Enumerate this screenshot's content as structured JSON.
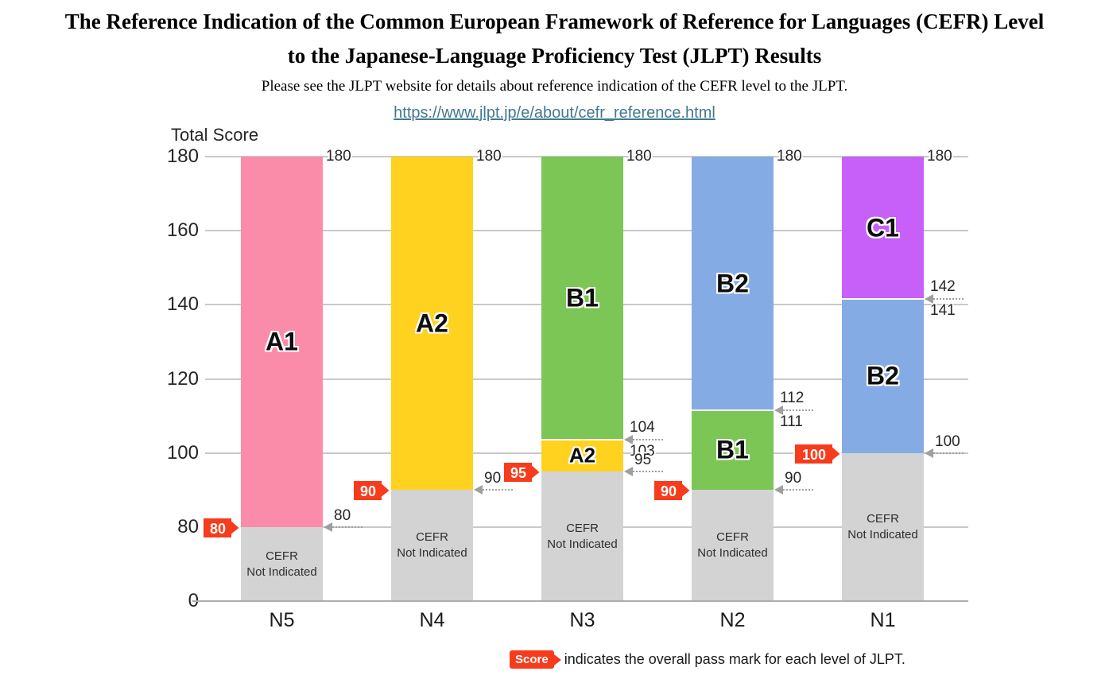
{
  "header": {
    "title_line1": "The Reference Indication of the Common European Framework of Reference for Languages (CEFR) Level",
    "title_line2": "to the Japanese-Language Proficiency Test (JLPT) Results",
    "subtitle": "Please see the JLPT website for details about reference indication of the CEFR level to the JLPT.",
    "link_text": "https://www.jlpt.jp/e/about/cefr_reference.html"
  },
  "legend": {
    "badge_label": "Score",
    "text": "indicates the overall pass mark for each level of JLPT."
  },
  "colors": {
    "A1": "#FB8CA9",
    "A2": "#FFD21F",
    "B1": "#7CC655",
    "B2": "#85ABE4",
    "C1": "#C760F8",
    "not_indicated": "#D3D3D3",
    "pass_badge_red": "#F73B1D",
    "link_teal": "#41798F",
    "gridline": "#C9C9C9",
    "axis_line": "#ADADAD"
  },
  "chart_data": {
    "type": "bar",
    "title": "Total Score",
    "ylabel": "Total Score",
    "ylim": [
      0,
      180
    ],
    "yticks": [
      180,
      160,
      140,
      120,
      100,
      80,
      0
    ],
    "axis_note": "y-axis is compressed below score 80",
    "categories": [
      "N5",
      "N4",
      "N3",
      "N2",
      "N1"
    ],
    "bars": [
      {
        "category": "N5",
        "pass_mark": 80,
        "segments": [
          {
            "level": null,
            "label": "CEFR Not Indicated",
            "label_lines": [
              "CEFR",
              "Not Indicated"
            ],
            "from": 0,
            "to": 80,
            "color": "not_indicated"
          },
          {
            "level": "A1",
            "label": "A1",
            "from": 80,
            "to": 180,
            "color": "A1"
          }
        ],
        "annotations": [
          {
            "style": "plain",
            "score": 180,
            "text": "180"
          },
          {
            "style": "arrow",
            "score": 80,
            "text": "80"
          }
        ]
      },
      {
        "category": "N4",
        "pass_mark": 90,
        "segments": [
          {
            "level": null,
            "label": "CEFR Not Indicated",
            "label_lines": [
              "CEFR",
              "Not Indicated"
            ],
            "from": 0,
            "to": 90,
            "color": "not_indicated"
          },
          {
            "level": "A2",
            "label": "A2",
            "from": 90,
            "to": 180,
            "color": "A2"
          }
        ],
        "annotations": [
          {
            "style": "plain",
            "score": 180,
            "text": "180"
          },
          {
            "style": "arrow",
            "score": 90,
            "text": "90"
          }
        ]
      },
      {
        "category": "N3",
        "pass_mark": 95,
        "segments": [
          {
            "level": null,
            "label": "CEFR Not Indicated",
            "label_lines": [
              "CEFR",
              "Not Indicated"
            ],
            "from": 0,
            "to": 95,
            "color": "not_indicated"
          },
          {
            "level": "A2",
            "label": "A2",
            "from": 95,
            "to": 103,
            "color": "A2"
          },
          {
            "level": "B1",
            "label": "B1",
            "from": 104,
            "to": 180,
            "color": "B1"
          }
        ],
        "annotations": [
          {
            "style": "plain",
            "score": 180,
            "text": "180"
          },
          {
            "style": "pair",
            "above": "104",
            "below": "103"
          },
          {
            "style": "arrow",
            "score": 95,
            "text": "95"
          }
        ]
      },
      {
        "category": "N2",
        "pass_mark": 90,
        "segments": [
          {
            "level": null,
            "label": "CEFR Not Indicated",
            "label_lines": [
              "CEFR",
              "Not Indicated"
            ],
            "from": 0,
            "to": 90,
            "color": "not_indicated"
          },
          {
            "level": "B1",
            "label": "B1",
            "from": 90,
            "to": 111,
            "color": "B1"
          },
          {
            "level": "B2",
            "label": "B2",
            "from": 112,
            "to": 180,
            "color": "B2"
          }
        ],
        "annotations": [
          {
            "style": "plain",
            "score": 180,
            "text": "180"
          },
          {
            "style": "pair",
            "above": "112",
            "below": "111"
          },
          {
            "style": "arrow",
            "score": 90,
            "text": "90"
          }
        ]
      },
      {
        "category": "N1",
        "pass_mark": 100,
        "segments": [
          {
            "level": null,
            "label": "CEFR Not Indicated",
            "label_lines": [
              "CEFR",
              "Not Indicated"
            ],
            "from": 0,
            "to": 100,
            "color": "not_indicated"
          },
          {
            "level": "B2",
            "label": "B2",
            "from": 100,
            "to": 141,
            "color": "B2"
          },
          {
            "level": "C1",
            "label": "C1",
            "from": 142,
            "to": 180,
            "color": "C1"
          }
        ],
        "annotations": [
          {
            "style": "plain",
            "score": 180,
            "text": "180"
          },
          {
            "style": "pair",
            "above": "142",
            "below": "141"
          },
          {
            "style": "arrow",
            "score": 100,
            "text": "100"
          }
        ]
      }
    ]
  }
}
